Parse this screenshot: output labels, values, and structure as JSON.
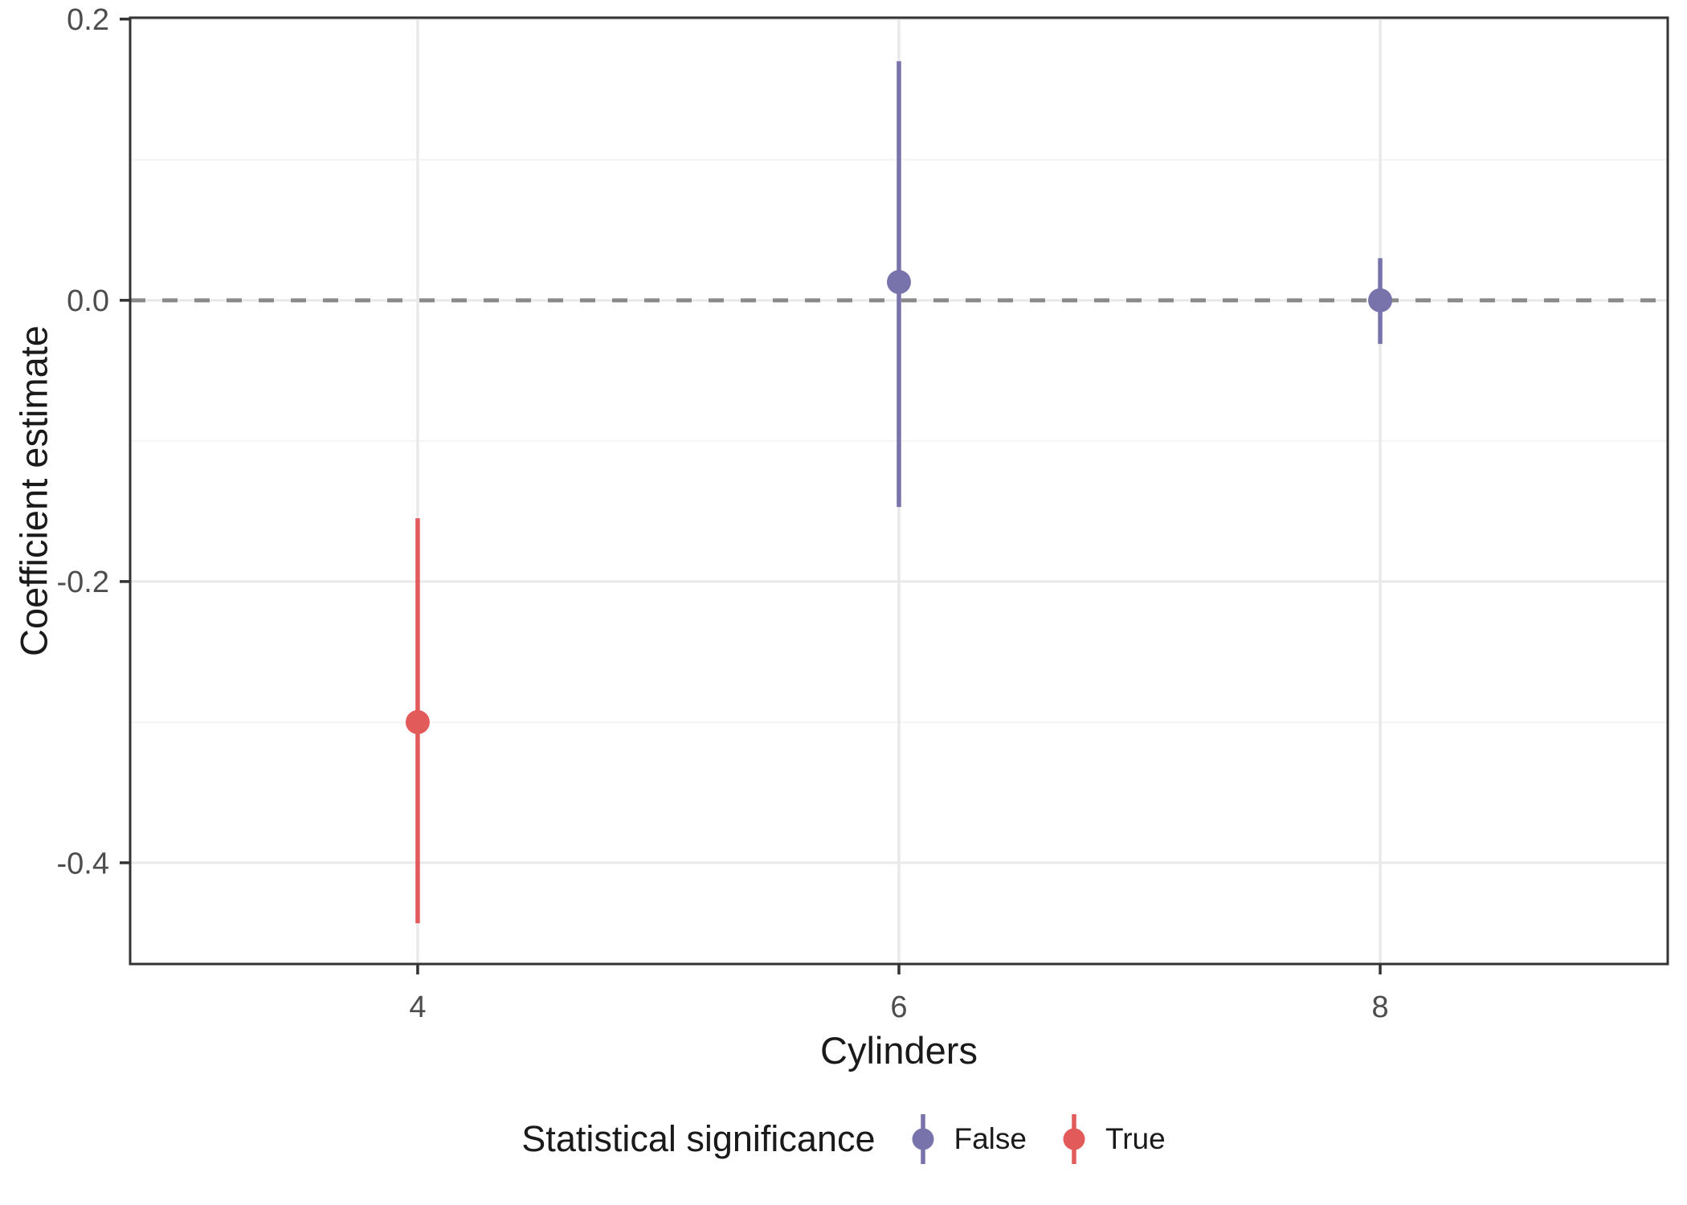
{
  "chart_data": {
    "type": "pointrange",
    "title": "",
    "xlabel": "Cylinders",
    "ylabel": "Coefficient estimate",
    "xlim": [
      2.805,
      9.195
    ],
    "ylim": [
      -0.472,
      0.201
    ],
    "grid": "on",
    "x_breaks": [
      {
        "value": 4,
        "label": "4"
      },
      {
        "value": 6,
        "label": "6"
      },
      {
        "value": 8,
        "label": "8"
      }
    ],
    "y_breaks": [
      {
        "value": 0.2,
        "label": "0.2"
      },
      {
        "value": 0.0,
        "label": "0.0"
      },
      {
        "value": -0.2,
        "label": "-0.2"
      },
      {
        "value": -0.4,
        "label": "-0.4"
      }
    ],
    "y_minor_breaks": [
      0.1,
      -0.1,
      -0.3
    ],
    "reference_line": {
      "y": 0,
      "style": "dashed",
      "color": "#8a8a8a"
    },
    "series": [
      {
        "name": "False",
        "color": "#7973AC",
        "points": [
          {
            "x": 6,
            "estimate": 0.013,
            "ci_low": -0.147,
            "ci_high": 0.17
          },
          {
            "x": 8,
            "estimate": 0.0,
            "ci_low": -0.031,
            "ci_high": 0.03
          }
        ]
      },
      {
        "name": "True",
        "color": "#E25A5A",
        "points": [
          {
            "x": 4,
            "estimate": -0.3,
            "ci_low": -0.443,
            "ci_high": -0.155
          }
        ]
      }
    ],
    "legend": {
      "title": "Statistical significance",
      "position": "bottom",
      "entries": [
        {
          "label": "False",
          "color": "#7973AC"
        },
        {
          "label": "True",
          "color": "#E25A5A"
        }
      ]
    },
    "colors": {
      "panel_border": "#333333",
      "grid_major": "#E9E9E9",
      "grid_minor": "#F4F4F4",
      "tick_label": "#4D4D4D",
      "axis_title": "#1a1a1a"
    }
  }
}
